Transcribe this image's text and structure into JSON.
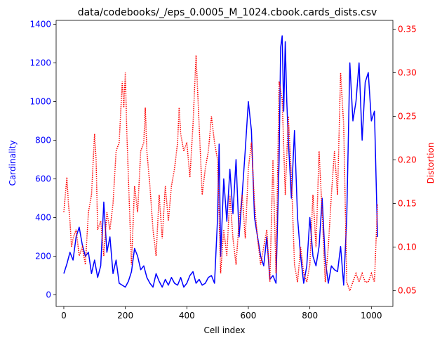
{
  "chart_data": {
    "type": "line",
    "title": "data/codebooks/_/eps_0.0005_M_1024.cbook.cards_dists.csv",
    "xlabel": "Cell index",
    "ylabel_left": "Cardinality",
    "ylabel_right": "Distortion",
    "xlim": [
      -25,
      1070
    ],
    "ylim_left": [
      -60,
      1420
    ],
    "ylim_right": [
      0.032,
      0.36
    ],
    "x_ticks": [
      0,
      200,
      400,
      600,
      800,
      1000
    ],
    "y_left_ticks": [
      0,
      200,
      400,
      600,
      800,
      1000,
      1200,
      1400
    ],
    "y_right_ticks": [
      0.05,
      0.1,
      0.15,
      0.2,
      0.25,
      0.3,
      0.35
    ],
    "y_right_tick_labels": [
      "0.05",
      "0.10",
      "0.15",
      "0.20",
      "0.25",
      "0.30",
      "0.35"
    ],
    "grid": false,
    "colors": {
      "left": "#0000ff",
      "right": "#ff0000"
    },
    "series": [
      {
        "axis": "left",
        "line_style": "solid",
        "x": [
          0,
          10,
          20,
          30,
          40,
          50,
          60,
          70,
          80,
          90,
          100,
          110,
          120,
          130,
          140,
          150,
          160,
          170,
          180,
          190,
          200,
          210,
          220,
          230,
          240,
          250,
          260,
          270,
          280,
          290,
          300,
          310,
          320,
          330,
          340,
          350,
          360,
          370,
          380,
          390,
          400,
          410,
          420,
          430,
          440,
          450,
          460,
          470,
          480,
          490,
          500,
          505,
          510,
          520,
          530,
          540,
          550,
          560,
          570,
          580,
          590,
          600,
          610,
          620,
          630,
          640,
          650,
          660,
          670,
          680,
          690,
          700,
          705,
          710,
          715,
          720,
          725,
          730,
          740,
          750,
          760,
          770,
          780,
          790,
          800,
          810,
          820,
          830,
          840,
          850,
          860,
          870,
          880,
          890,
          900,
          910,
          920,
          930,
          940,
          950,
          960,
          970,
          980,
          990,
          1000,
          1010,
          1020
        ],
        "values": [
          110,
          160,
          220,
          180,
          300,
          350,
          260,
          200,
          220,
          110,
          180,
          90,
          150,
          480,
          220,
          300,
          110,
          180,
          60,
          50,
          40,
          70,
          120,
          240,
          200,
          130,
          150,
          90,
          60,
          40,
          110,
          70,
          40,
          80,
          50,
          90,
          60,
          50,
          90,
          40,
          60,
          100,
          120,
          60,
          80,
          50,
          60,
          90,
          100,
          60,
          400,
          780,
          200,
          600,
          380,
          650,
          420,
          700,
          300,
          520,
          750,
          1000,
          850,
          400,
          300,
          200,
          150,
          300,
          80,
          100,
          60,
          700,
          1280,
          1340,
          950,
          1310,
          1000,
          800,
          500,
          850,
          400,
          200,
          60,
          150,
          400,
          200,
          150,
          250,
          500,
          180,
          60,
          150,
          130,
          120,
          250,
          50,
          400,
          1200,
          900,
          1000,
          1200,
          800,
          1100,
          1150,
          900,
          950,
          300
        ]
      },
      {
        "axis": "right",
        "line_style": "dotted",
        "x": [
          0,
          5,
          10,
          15,
          20,
          25,
          30,
          40,
          50,
          60,
          70,
          80,
          90,
          100,
          105,
          110,
          120,
          130,
          140,
          150,
          160,
          170,
          180,
          190,
          195,
          200,
          205,
          210,
          220,
          230,
          240,
          250,
          260,
          265,
          270,
          280,
          290,
          300,
          310,
          320,
          330,
          340,
          350,
          360,
          370,
          375,
          380,
          390,
          400,
          410,
          420,
          430,
          440,
          450,
          460,
          470,
          480,
          490,
          500,
          510,
          520,
          530,
          540,
          550,
          560,
          570,
          580,
          590,
          600,
          610,
          620,
          630,
          640,
          650,
          660,
          670,
          680,
          690,
          700,
          710,
          720,
          730,
          740,
          750,
          760,
          770,
          780,
          790,
          800,
          810,
          820,
          830,
          840,
          850,
          860,
          870,
          880,
          890,
          900,
          910,
          920,
          930,
          940,
          950,
          960,
          970,
          980,
          990,
          1000,
          1010,
          1020
        ],
        "values": [
          0.14,
          0.16,
          0.18,
          0.15,
          0.13,
          0.1,
          0.11,
          0.12,
          0.09,
          0.1,
          0.08,
          0.14,
          0.16,
          0.23,
          0.2,
          0.12,
          0.13,
          0.09,
          0.14,
          0.12,
          0.15,
          0.21,
          0.22,
          0.29,
          0.26,
          0.3,
          0.23,
          0.18,
          0.08,
          0.17,
          0.14,
          0.21,
          0.22,
          0.26,
          0.21,
          0.17,
          0.12,
          0.09,
          0.16,
          0.11,
          0.17,
          0.13,
          0.17,
          0.19,
          0.22,
          0.26,
          0.23,
          0.21,
          0.22,
          0.18,
          0.24,
          0.32,
          0.24,
          0.16,
          0.19,
          0.21,
          0.25,
          0.22,
          0.2,
          0.07,
          0.12,
          0.09,
          0.16,
          0.11,
          0.08,
          0.13,
          0.16,
          0.11,
          0.19,
          0.22,
          0.15,
          0.11,
          0.08,
          0.1,
          0.12,
          0.06,
          0.2,
          0.07,
          0.29,
          0.27,
          0.16,
          0.25,
          0.18,
          0.08,
          0.06,
          0.1,
          0.07,
          0.06,
          0.08,
          0.16,
          0.1,
          0.21,
          0.14,
          0.06,
          0.1,
          0.16,
          0.21,
          0.16,
          0.3,
          0.24,
          0.06,
          0.05,
          0.06,
          0.07,
          0.06,
          0.07,
          0.06,
          0.06,
          0.07,
          0.06,
          0.15
        ]
      }
    ]
  }
}
